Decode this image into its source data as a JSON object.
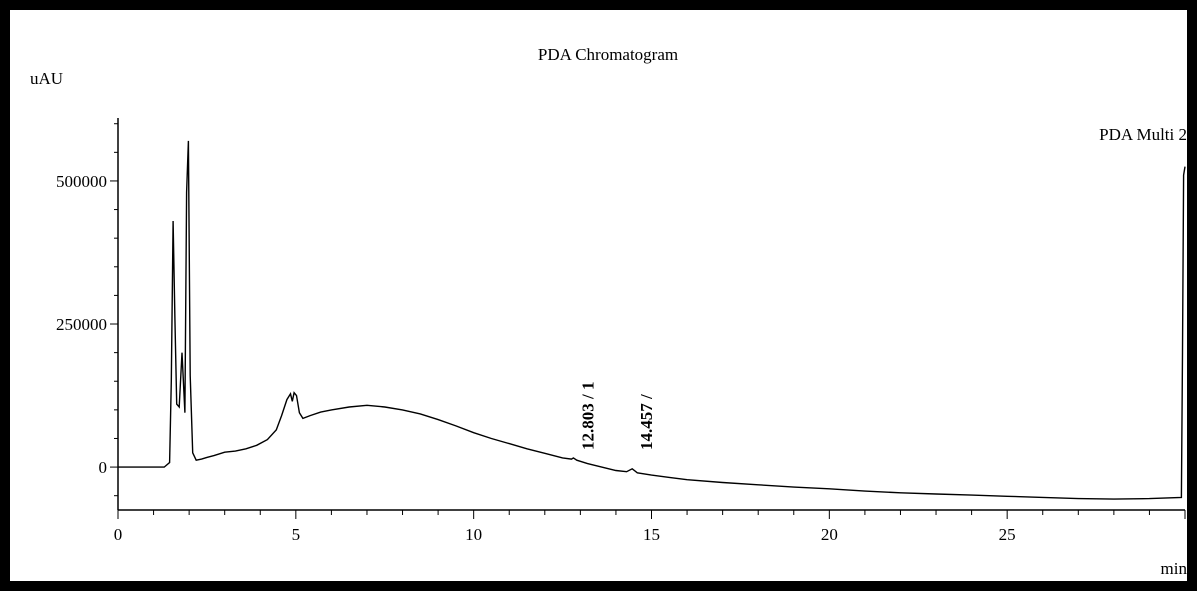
{
  "chart_data": {
    "type": "line",
    "title": "PDA Chromatogram",
    "ylabel": "uAU",
    "xlabel": "min",
    "trace_label": "PDA Multi 2",
    "xlim": [
      0,
      30
    ],
    "ylim": [
      -75000,
      610000
    ],
    "x_ticks": [
      "0",
      "5",
      "10",
      "15",
      "20",
      "25"
    ],
    "y_ticks": [
      "500000",
      "250000",
      "0"
    ],
    "y_tick_values": [
      500000,
      250000,
      0
    ],
    "x_tick_values": [
      0,
      5,
      10,
      15,
      20,
      25
    ],
    "peak_labels": [
      "12.803 / 1",
      "14.457 /"
    ],
    "peak_label_x": [
      12.803,
      14.457
    ],
    "series": [
      {
        "x": [
          0,
          1.3,
          1.45,
          1.5,
          1.55,
          1.6,
          1.65,
          1.72,
          1.8,
          1.88,
          1.93,
          1.98,
          2.03,
          2.1,
          2.2,
          2.35,
          2.5,
          2.7,
          3.0,
          3.3,
          3.6,
          3.9,
          4.2,
          4.45,
          4.6,
          4.75,
          4.85,
          4.9,
          4.95,
          5.02,
          5.1,
          5.2,
          5.4,
          5.7,
          6.0,
          6.5,
          7.0,
          7.5,
          8.0,
          8.5,
          9.0,
          9.5,
          10.0,
          10.5,
          11.0,
          11.5,
          12.0,
          12.5,
          12.75,
          12.803,
          12.9,
          13.2,
          13.6,
          14.0,
          14.3,
          14.457,
          14.6,
          15.0,
          15.5,
          16.0,
          17.0,
          18.0,
          19.0,
          20.0,
          21.0,
          22.0,
          23.0,
          24.0,
          25.0,
          26.0,
          27.0,
          28.0,
          29.0,
          29.9,
          29.93,
          29.96,
          30.0
        ],
        "y": [
          0,
          0,
          8000,
          150000,
          430000,
          260000,
          110000,
          105000,
          200000,
          95000,
          480000,
          570000,
          160000,
          25000,
          12000,
          14000,
          17000,
          20000,
          26000,
          28000,
          32000,
          38000,
          48000,
          65000,
          90000,
          118000,
          128000,
          115000,
          130000,
          125000,
          95000,
          85000,
          90000,
          96000,
          100000,
          105000,
          108000,
          105000,
          100000,
          93000,
          83000,
          72000,
          60000,
          50000,
          41000,
          32000,
          24000,
          16000,
          14000,
          16000,
          12000,
          6000,
          0,
          -6000,
          -8000,
          -3000,
          -10000,
          -14000,
          -18000,
          -22000,
          -27000,
          -31000,
          -35000,
          -38000,
          -42000,
          -45000,
          -47000,
          -49000,
          -51000,
          -53000,
          -55000,
          -56000,
          -55000,
          -53000,
          200000,
          510000,
          525000
        ]
      }
    ],
    "grid": false
  }
}
